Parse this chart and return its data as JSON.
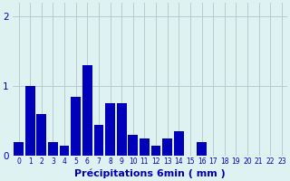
{
  "categories": [
    0,
    1,
    2,
    3,
    4,
    5,
    6,
    7,
    8,
    9,
    10,
    11,
    12,
    13,
    14,
    15,
    16,
    17,
    18,
    19,
    20,
    21,
    22,
    23
  ],
  "values": [
    0.2,
    1.0,
    0.6,
    0.2,
    0.15,
    0.85,
    1.3,
    0.45,
    0.75,
    0.75,
    0.3,
    0.25,
    0.15,
    0.25,
    0.35,
    0.0,
    0.2,
    0.0,
    0.0,
    0.0,
    0.0,
    0.0,
    0.0,
    0.0
  ],
  "bar_color": "#0000bb",
  "bg_color": "#dff2f2",
  "grid_color": "#b0c8c8",
  "xlabel": "Précipitations 6min ( mm )",
  "ylim": [
    0,
    2.2
  ],
  "yticks": [
    0,
    1,
    2
  ],
  "xlabel_color": "#0000bb",
  "tick_color": "#0000bb",
  "xlabel_fontsize": 8
}
